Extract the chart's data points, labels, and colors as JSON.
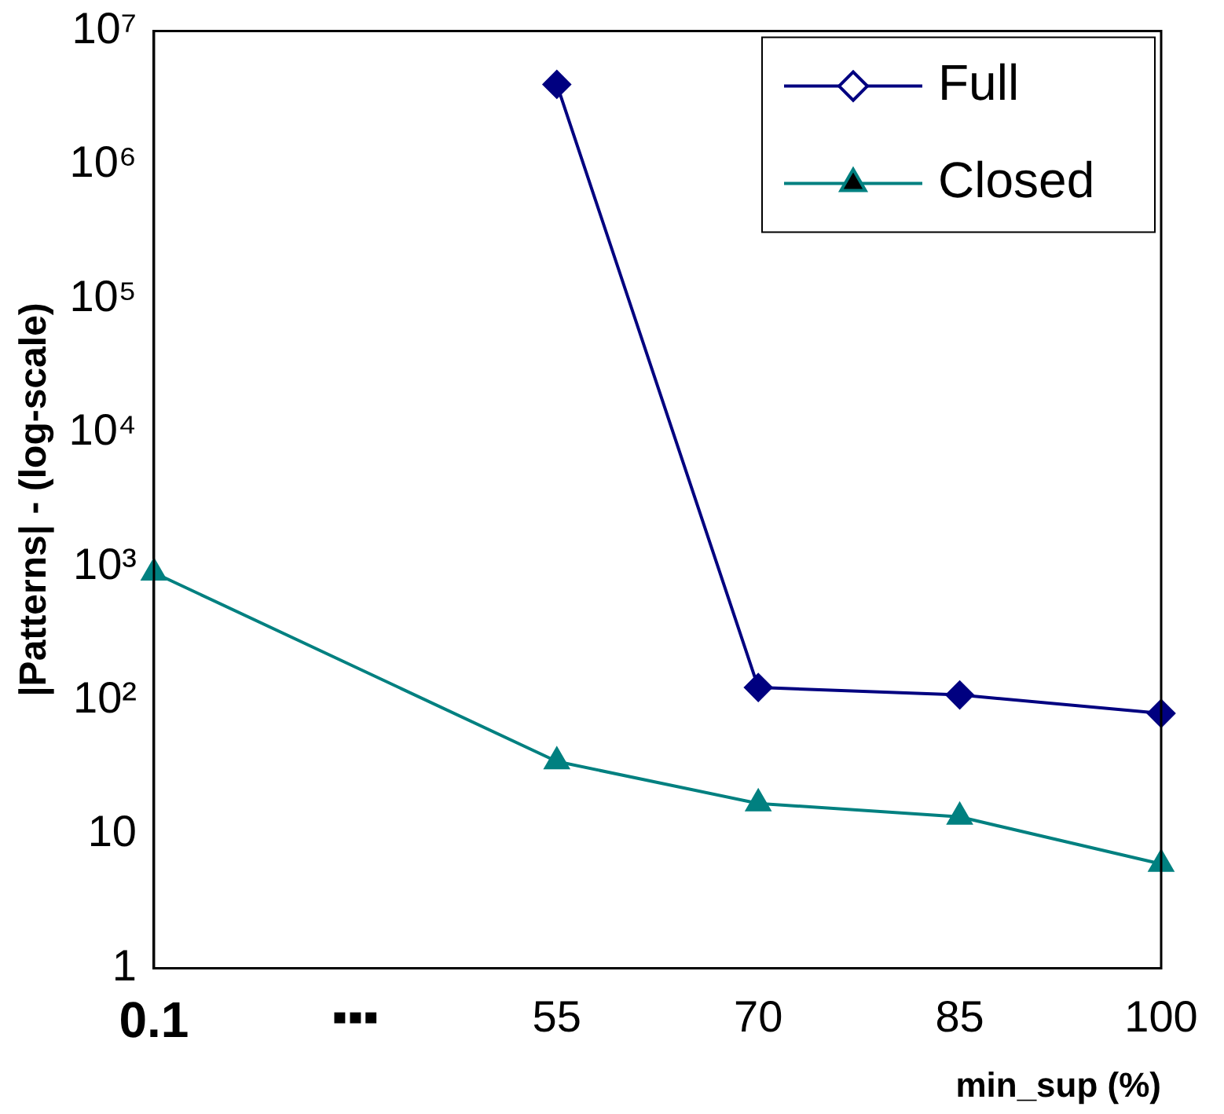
{
  "chart_data": {
    "type": "line",
    "xlabel": "min_sup (%)",
    "ylabel": "|Patterns| - (log-scale)",
    "categories": [
      "0.1",
      "▪▪▪",
      "55",
      "70",
      "85",
      "100"
    ],
    "series": [
      {
        "name": "Full",
        "color": "#000080",
        "marker": "diamond",
        "values": [
          null,
          null,
          4000000,
          125,
          110,
          80
        ]
      },
      {
        "name": "Closed",
        "color": "#008080",
        "marker": "triangle",
        "values": [
          900,
          null,
          35,
          17,
          13.5,
          6
        ]
      }
    ],
    "log": "y",
    "ylim": [
      1,
      10000000
    ],
    "yticks": [
      1,
      10,
      {
        "value": 100,
        "label": "10²"
      },
      {
        "value": 1000,
        "label": "10³"
      },
      {
        "value": 10000,
        "label": "10⁴"
      },
      {
        "value": 100000,
        "label": "10⁵"
      },
      {
        "value": 1000000,
        "label": "10⁶"
      },
      {
        "value": 10000000,
        "label": "10⁷"
      }
    ],
    "grid": false,
    "legend": "top right",
    "line_style": "solid"
  }
}
